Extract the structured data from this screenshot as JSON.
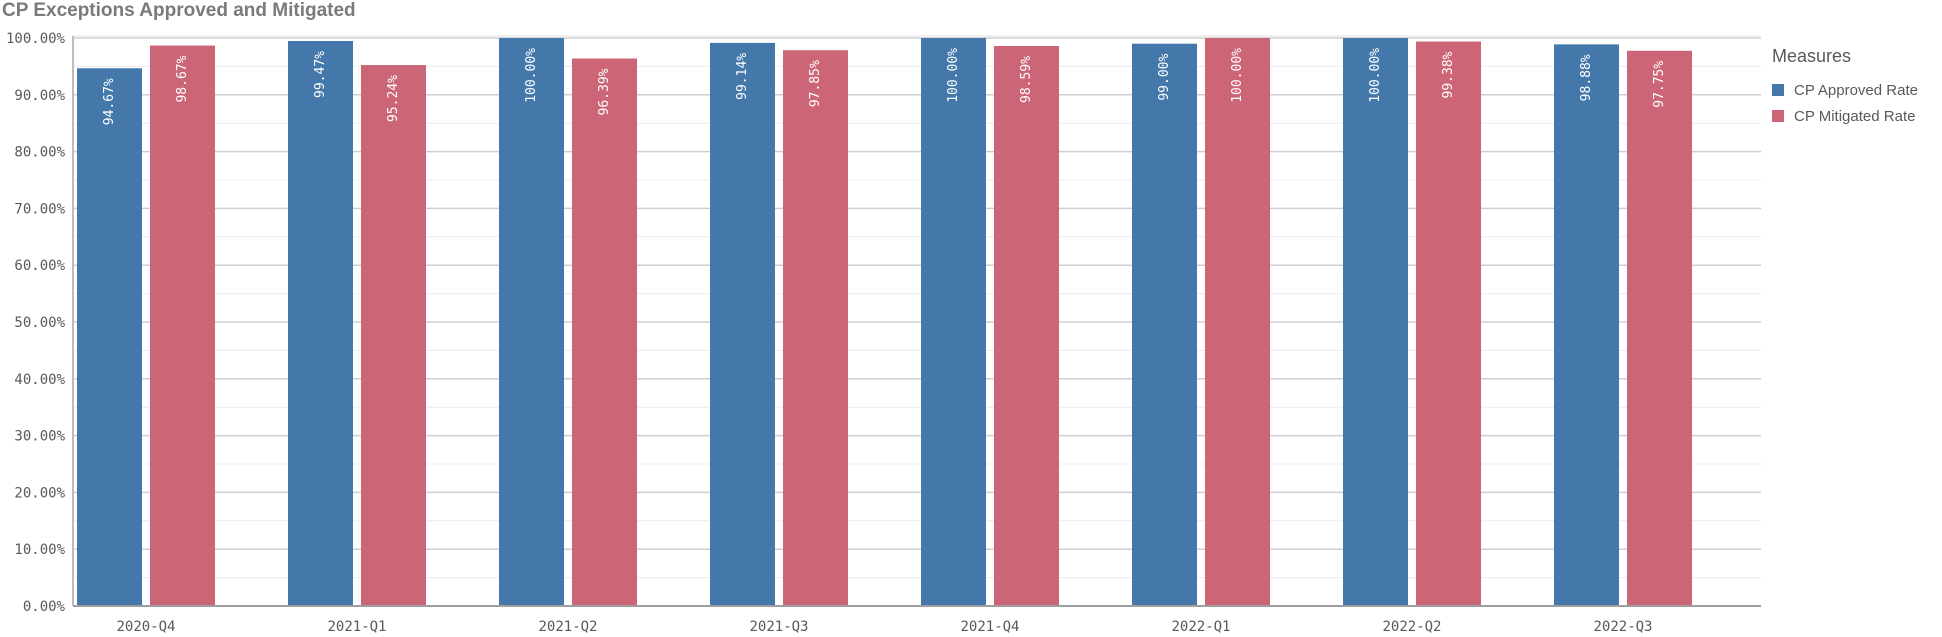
{
  "chart_data": {
    "type": "bar",
    "title": "CP Exceptions Approved and Mitigated",
    "categories": [
      "2020-Q4",
      "2021-Q1",
      "2021-Q2",
      "2021-Q3",
      "2021-Q4",
      "2022-Q1",
      "2022-Q2",
      "2022-Q3"
    ],
    "series": [
      {
        "name": "CP Approved Rate",
        "color": "#4477aa",
        "values": [
          94.67,
          99.47,
          100.0,
          99.14,
          100.0,
          99.0,
          100.0,
          98.88
        ],
        "labels": [
          "94.67%",
          "99.47%",
          "100.00%",
          "99.14%",
          "100.00%",
          "99.00%",
          "100.00%",
          "98.88%"
        ]
      },
      {
        "name": "CP Mitigated Rate",
        "color": "#cc6677",
        "values": [
          98.67,
          95.24,
          96.39,
          97.85,
          98.59,
          100.0,
          99.38,
          97.75
        ],
        "labels": [
          "98.67%",
          "95.24%",
          "96.39%",
          "97.85%",
          "98.59%",
          "100.00%",
          "99.38%",
          "97.75%"
        ]
      }
    ],
    "yticks": [
      "0.00%",
      "10.00%",
      "20.00%",
      "30.00%",
      "40.00%",
      "50.00%",
      "60.00%",
      "70.00%",
      "80.00%",
      "90.00%",
      "100.00%"
    ],
    "ylim": [
      0,
      100
    ],
    "grid": true,
    "legend": {
      "title": "Measures",
      "placement": "right"
    }
  }
}
